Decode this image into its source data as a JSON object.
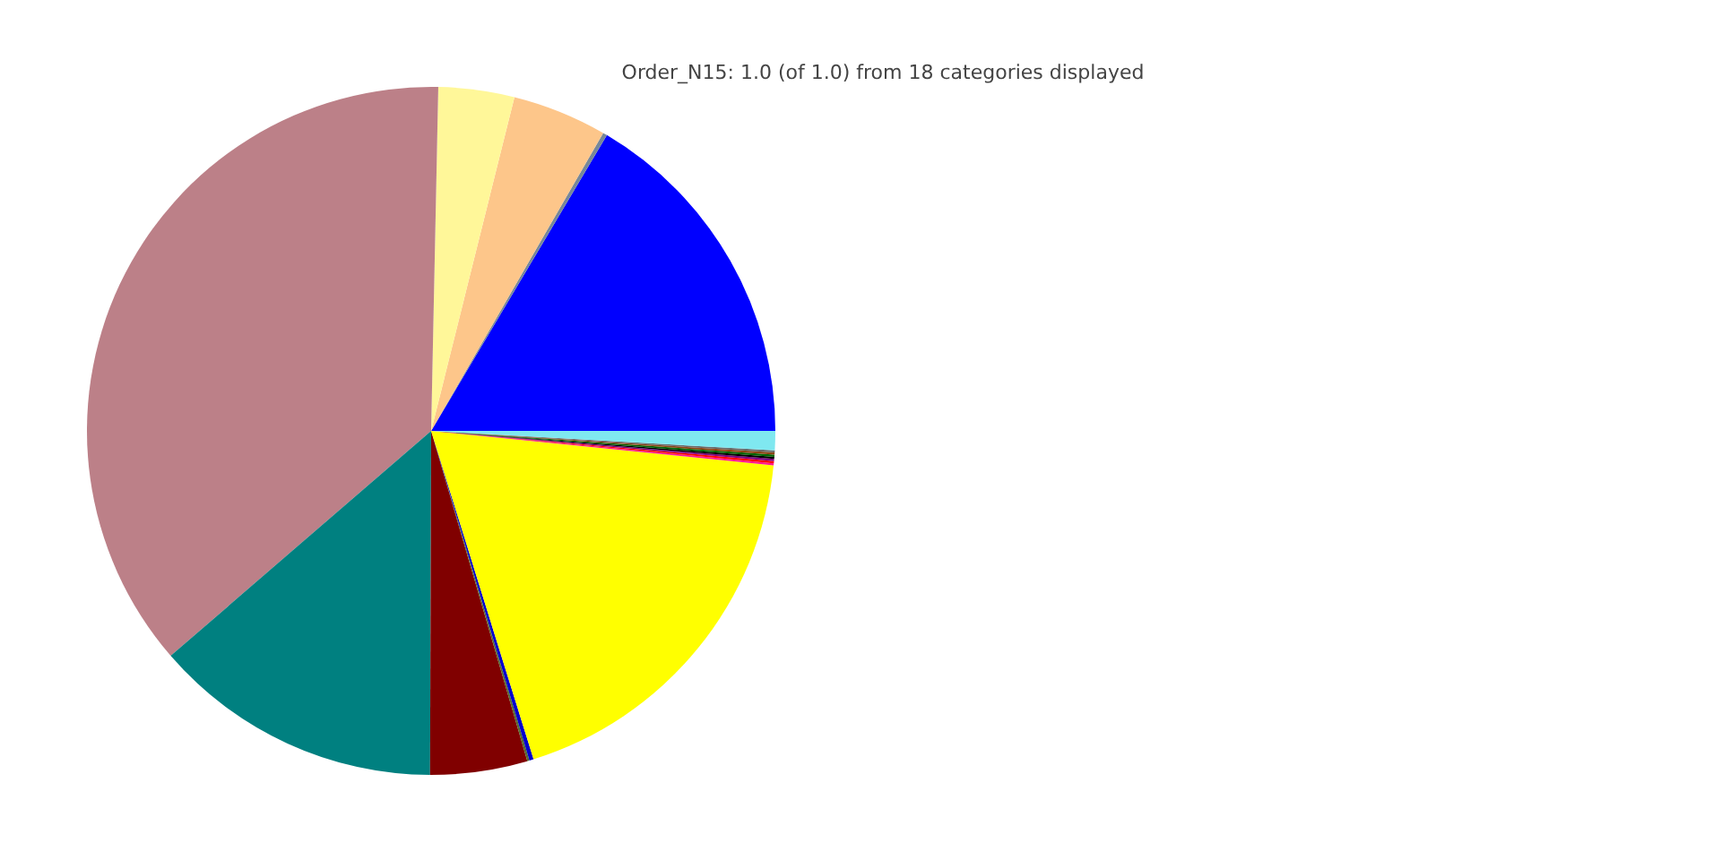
{
  "chart_data": {
    "type": "pie",
    "title": "Order_N15: 1.0 (of 1.0) from 18 categories displayed",
    "categories": [
      null,
      null,
      null,
      null,
      null,
      null,
      null,
      null,
      null,
      null,
      null,
      null,
      null,
      null,
      null,
      null,
      null,
      null
    ],
    "values": [
      16.47,
      0.2,
      4.44,
      3.56,
      36.67,
      13.61,
      4.56,
      0.1,
      0.2,
      18.59,
      0.1,
      0.1,
      0.1,
      0.1,
      0.1,
      0.1,
      0.1,
      0.9
    ],
    "colors": [
      "#0000ff",
      "#778899",
      "#fdc68a",
      "#fff799",
      "#bc8088",
      "#008080",
      "#800000",
      "#556b2f",
      "#0000cd",
      "#ffff00",
      "#ff1493",
      "#ff0000",
      "#800080",
      "#000000",
      "#006400",
      "#8b4513",
      "#696969",
      "#7fe8f0"
    ]
  }
}
